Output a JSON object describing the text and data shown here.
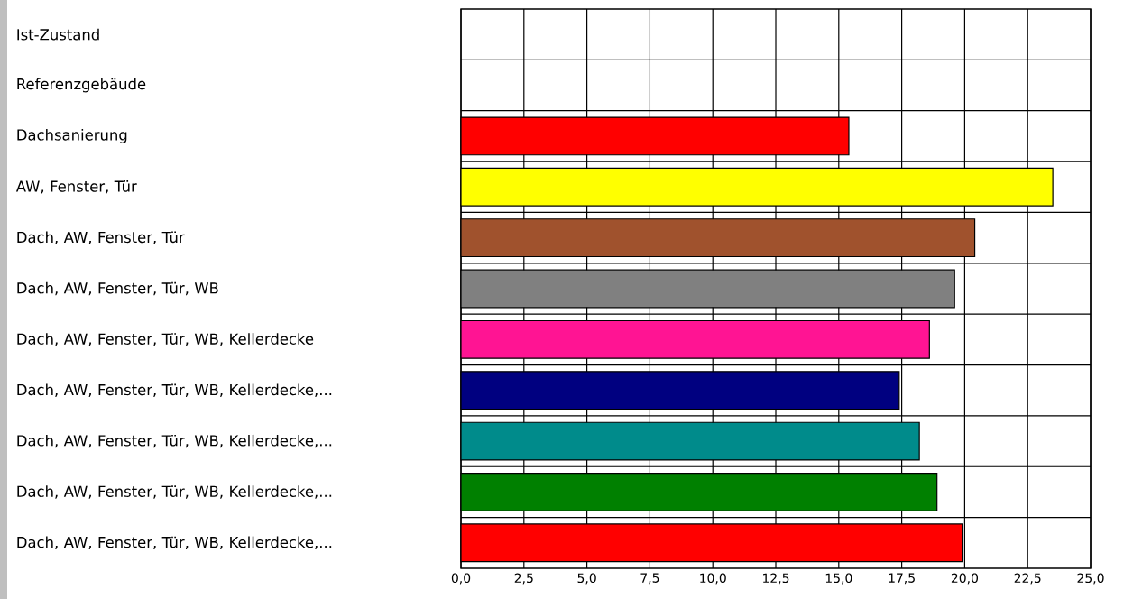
{
  "chart_data": {
    "type": "bar",
    "orientation": "horizontal",
    "categories": [
      "Ist-Zustand",
      "Referenzgebäude",
      "Dachsanierung",
      "AW, Fenster, Tür",
      "Dach, AW, Fenster, Tür",
      "Dach, AW, Fenster, Tür, WB",
      "Dach, AW, Fenster, Tür, WB, Kellerdecke",
      "Dach, AW, Fenster, Tür, WB, Kellerdecke,...",
      "Dach, AW, Fenster, Tür, WB, Kellerdecke,...",
      "Dach, AW, Fenster, Tür, WB, Kellerdecke,...",
      "Dach, AW, Fenster, Tür, WB, Kellerdecke,..."
    ],
    "values": [
      null,
      null,
      15.4,
      23.5,
      20.4,
      19.6,
      18.6,
      17.4,
      18.2,
      18.9,
      19.9
    ],
    "colors": [
      "#ff0000",
      "#ff0000",
      "#ff0000",
      "#ffff00",
      "#a0522d",
      "#808080",
      "#ff1493",
      "#000080",
      "#008b8b",
      "#008000",
      "#ff0000"
    ],
    "xlim": [
      0,
      25
    ],
    "xticks": [
      {
        "value": 0,
        "label": "0,0"
      },
      {
        "value": 2.5,
        "label": "2,5"
      },
      {
        "value": 5,
        "label": "5,0"
      },
      {
        "value": 7.5,
        "label": "7,5"
      },
      {
        "value": 10,
        "label": "10,0"
      },
      {
        "value": 12.5,
        "label": "12,5"
      },
      {
        "value": 15,
        "label": "15,0"
      },
      {
        "value": 17.5,
        "label": "17,5"
      },
      {
        "value": 20,
        "label": "20,0"
      },
      {
        "value": 22.5,
        "label": "22,5"
      },
      {
        "value": 25,
        "label": "25,0"
      }
    ],
    "grid": true
  }
}
